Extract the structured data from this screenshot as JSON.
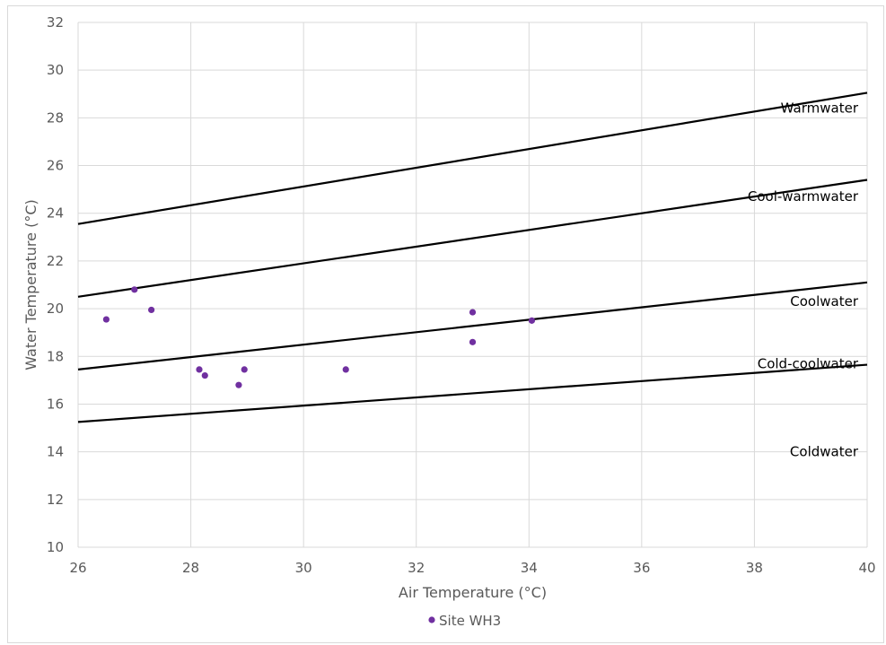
{
  "chart_data": {
    "type": "scatter",
    "title": "",
    "xlabel": "Air Temperature (°C)",
    "ylabel": "Water Temperature (°C)",
    "xlim": [
      26,
      40
    ],
    "ylim": [
      10,
      32
    ],
    "xticks": [
      26,
      28,
      30,
      32,
      34,
      36,
      38,
      40
    ],
    "yticks": [
      10,
      12,
      14,
      16,
      18,
      20,
      22,
      24,
      26,
      28,
      30,
      32
    ],
    "grid": true,
    "legend_position": "bottom",
    "series": [
      {
        "name": "Site WH3",
        "color": "#7030a0",
        "points": [
          {
            "x": 26.5,
            "y": 19.55
          },
          {
            "x": 27.0,
            "y": 20.8
          },
          {
            "x": 27.3,
            "y": 19.95
          },
          {
            "x": 28.15,
            "y": 17.45
          },
          {
            "x": 28.25,
            "y": 17.2
          },
          {
            "x": 28.85,
            "y": 16.8
          },
          {
            "x": 28.95,
            "y": 17.45
          },
          {
            "x": 30.75,
            "y": 17.45
          },
          {
            "x": 33.0,
            "y": 19.85
          },
          {
            "x": 33.0,
            "y": 18.6
          },
          {
            "x": 34.05,
            "y": 19.5
          }
        ]
      }
    ],
    "threshold_lines": [
      {
        "x": [
          26,
          40
        ],
        "y": [
          23.55,
          29.05
        ]
      },
      {
        "x": [
          26,
          40
        ],
        "y": [
          20.5,
          25.4
        ]
      },
      {
        "x": [
          26,
          40
        ],
        "y": [
          17.45,
          21.1
        ]
      },
      {
        "x": [
          26,
          40
        ],
        "y": [
          15.25,
          17.65
        ]
      }
    ],
    "band_labels": [
      "Warmwater",
      "Cool-warmwater",
      "Coolwater",
      "Cold-coolwater",
      "Coldwater"
    ],
    "line_color": "#000000"
  }
}
